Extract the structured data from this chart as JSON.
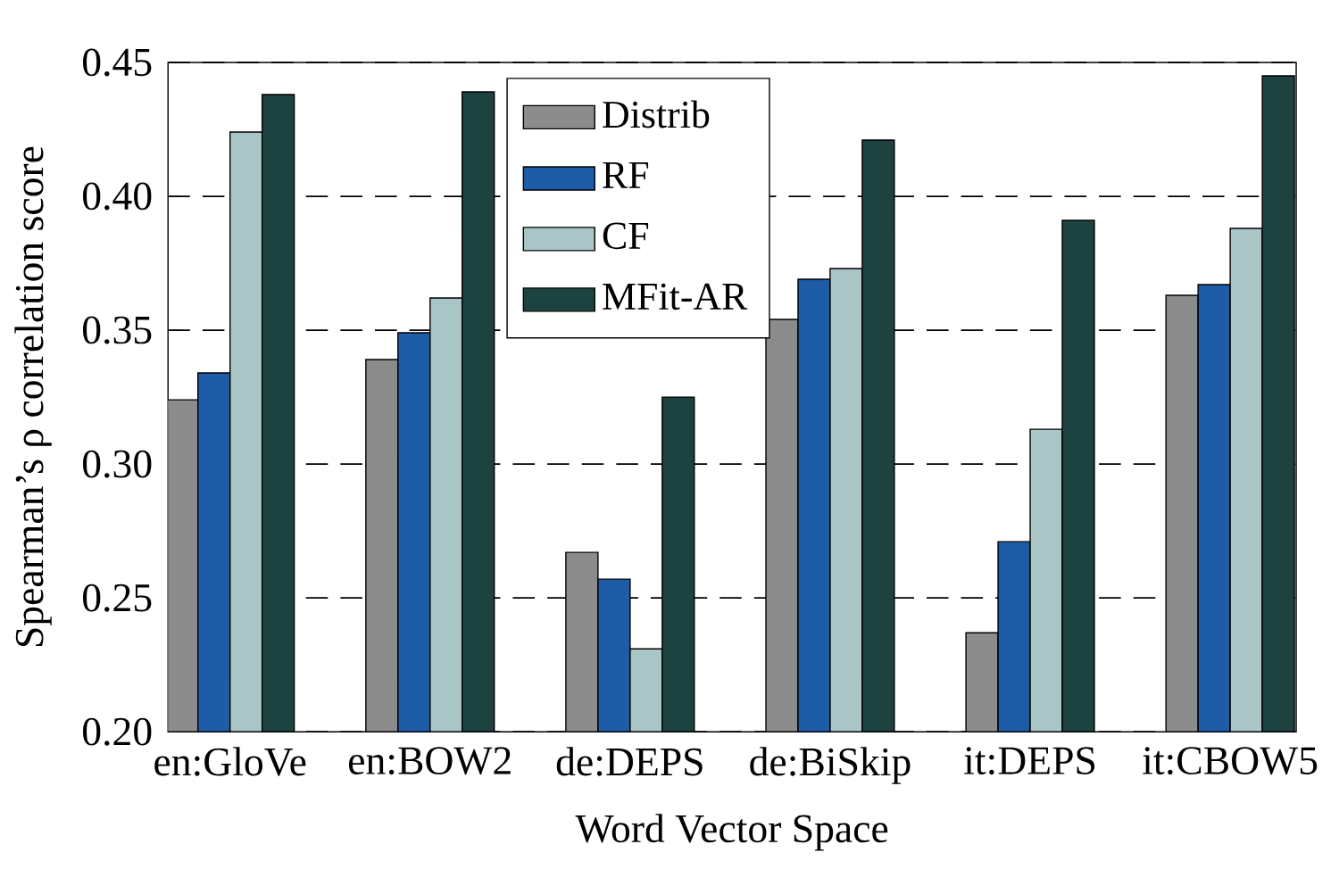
{
  "chart_data": {
    "type": "bar",
    "xlabel": "Word Vector Space",
    "ylabel": "Spearman’s ρ correlation score",
    "categories": [
      "en:GloVe",
      "en:BOW2",
      "de:DEPS",
      "de:BiSkip",
      "it:DEPS",
      "it:CBOW5"
    ],
    "series": [
      {
        "name": "Distrib",
        "color": "#8c8c8c",
        "values": [
          0.324,
          0.339,
          0.267,
          0.354,
          0.237,
          0.363
        ]
      },
      {
        "name": "RF",
        "color": "#1f5ca8",
        "values": [
          0.334,
          0.349,
          0.257,
          0.369,
          0.271,
          0.367
        ]
      },
      {
        "name": "CF",
        "color": "#aac5c5",
        "values": [
          0.424,
          0.362,
          0.231,
          0.373,
          0.313,
          0.388
        ]
      },
      {
        "name": "MFit-AR",
        "color": "#1d4340",
        "values": [
          0.438,
          0.439,
          0.325,
          0.421,
          0.391,
          0.445
        ]
      }
    ],
    "ylim": [
      0.2,
      0.45
    ],
    "yticks": [
      {
        "value": 0.2,
        "label": "0.20"
      },
      {
        "value": 0.25,
        "label": "0.25"
      },
      {
        "value": 0.3,
        "label": "0.30"
      },
      {
        "value": 0.35,
        "label": "0.35"
      },
      {
        "value": 0.4,
        "label": "0.40"
      },
      {
        "value": 0.45,
        "label": "0.45"
      }
    ],
    "grid": "y",
    "line_style": "dashed",
    "legend": "top"
  }
}
